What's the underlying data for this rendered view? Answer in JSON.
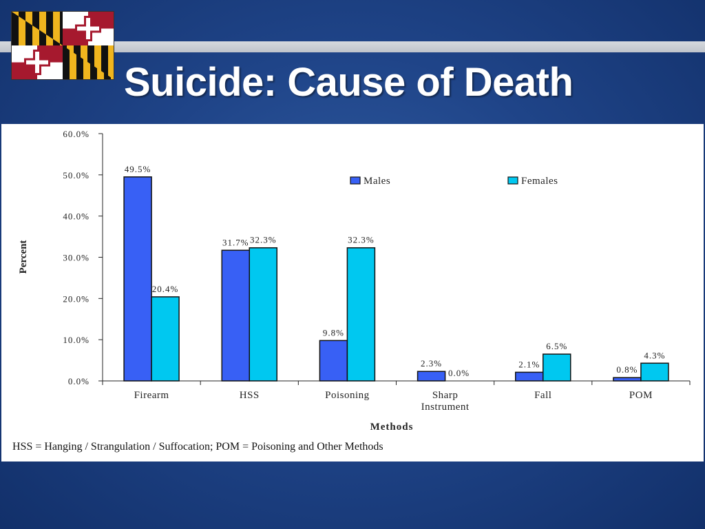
{
  "slide": {
    "title": "Suicide: Cause of Death",
    "footnote": "HSS = Hanging / Strangulation / Suffocation; POM = Poisoning and Other Methods"
  },
  "flag_logo": {
    "icon": "maryland-flag-icon",
    "colors": {
      "gold": "#f0b51e",
      "black": "#111111",
      "red": "#a6192e",
      "white": "#ffffff"
    }
  },
  "chart_data": {
    "type": "bar",
    "title": "",
    "xlabel": "Methods",
    "ylabel": "Percent",
    "ylim": [
      0,
      60
    ],
    "yticks": [
      "0.0%",
      "10.0%",
      "20.0%",
      "30.0%",
      "40.0%",
      "50.0%",
      "60.0%"
    ],
    "categories": [
      "Firearm",
      "HSS",
      "Poisoning",
      "Sharp Instrument",
      "Fall",
      "POM"
    ],
    "category_lines": [
      [
        "Firearm"
      ],
      [
        "HSS"
      ],
      [
        "Poisoning"
      ],
      [
        "Sharp",
        "Instrument"
      ],
      [
        "Fall"
      ],
      [
        "POM"
      ]
    ],
    "series": [
      {
        "name": "Males",
        "color": "#3860f5",
        "values": [
          49.5,
          31.7,
          9.8,
          2.3,
          2.1,
          0.8
        ],
        "labels": [
          "49.5%",
          "31.7%",
          "9.8%",
          "2.3%",
          "2.1%",
          "0.8%"
        ]
      },
      {
        "name": "Females",
        "color": "#00c8f0",
        "values": [
          20.4,
          32.3,
          32.3,
          0.0,
          6.5,
          4.3
        ],
        "labels": [
          "20.4%",
          "32.3%",
          "32.3%",
          "0.0%",
          "6.5%",
          "4.3%"
        ]
      }
    ],
    "legend": "top-right",
    "grid": false
  }
}
